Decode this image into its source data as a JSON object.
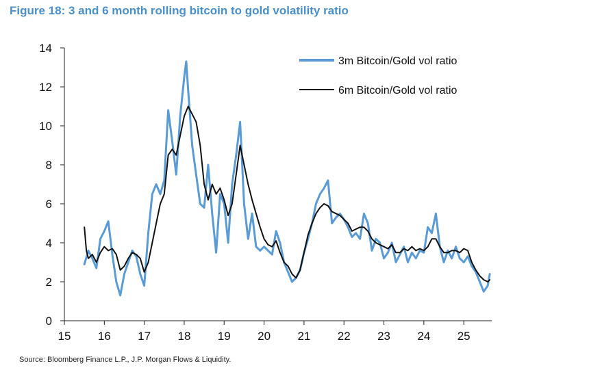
{
  "figure": {
    "title": "Figure 18: 3 and 6 month rolling bitcoin to gold volatility ratio",
    "source": "Source: Bloomberg Finance L.P., J.P. Morgan Flows & Liquidity."
  },
  "colors": {
    "series_3m": "#5b9bd5",
    "series_6m": "#111111",
    "axis": "#222222"
  },
  "chart_data": {
    "type": "line",
    "title": "Figure 18: 3 and 6 month rolling bitcoin to gold volatility ratio",
    "xlabel": "",
    "ylabel": "",
    "xlim": [
      15,
      25.7
    ],
    "ylim": [
      0,
      14
    ],
    "xticks": [
      15,
      16,
      17,
      18,
      19,
      20,
      21,
      22,
      23,
      24,
      25
    ],
    "xtick_labels": [
      "15",
      "16",
      "17",
      "18",
      "19",
      "20",
      "21",
      "22",
      "23",
      "24",
      "25"
    ],
    "yticks": [
      0,
      2,
      4,
      6,
      8,
      10,
      12,
      14
    ],
    "ytick_labels": [
      "0",
      "2",
      "4",
      "6",
      "8",
      "10",
      "12",
      "14"
    ],
    "grid": false,
    "legend_position": "top-right",
    "series": [
      {
        "name": "3m Bitcoin/Gold vol ratio",
        "x": [
          15.5,
          15.6,
          15.7,
          15.8,
          15.9,
          16.0,
          16.1,
          16.2,
          16.3,
          16.4,
          16.5,
          16.6,
          16.7,
          16.8,
          16.9,
          17.0,
          17.1,
          17.2,
          17.3,
          17.4,
          17.5,
          17.6,
          17.7,
          17.8,
          17.9,
          18.0,
          18.05,
          18.1,
          18.2,
          18.3,
          18.4,
          18.5,
          18.6,
          18.7,
          18.8,
          18.9,
          19.0,
          19.1,
          19.2,
          19.3,
          19.4,
          19.5,
          19.6,
          19.7,
          19.8,
          19.9,
          20.0,
          20.1,
          20.2,
          20.3,
          20.4,
          20.5,
          20.6,
          20.7,
          20.8,
          20.9,
          21.0,
          21.1,
          21.2,
          21.3,
          21.4,
          21.5,
          21.6,
          21.7,
          21.8,
          21.9,
          22.0,
          22.1,
          22.2,
          22.3,
          22.4,
          22.5,
          22.6,
          22.7,
          22.8,
          22.9,
          23.0,
          23.1,
          23.2,
          23.3,
          23.4,
          23.5,
          23.6,
          23.7,
          23.8,
          23.9,
          24.0,
          24.1,
          24.2,
          24.3,
          24.4,
          24.5,
          24.6,
          24.7,
          24.8,
          24.9,
          25.0,
          25.1,
          25.2,
          25.3,
          25.4,
          25.5,
          25.6,
          25.65
        ],
        "y": [
          2.9,
          3.6,
          3.2,
          2.7,
          4.2,
          4.6,
          5.1,
          3.4,
          2.0,
          1.3,
          2.4,
          3.0,
          3.6,
          3.3,
          2.4,
          1.8,
          4.5,
          6.5,
          7.0,
          6.5,
          7.2,
          10.8,
          9.2,
          7.5,
          10.5,
          12.5,
          13.3,
          11.8,
          9.0,
          7.5,
          6.0,
          5.8,
          8.0,
          5.5,
          3.5,
          6.5,
          6.0,
          4.0,
          7.0,
          8.5,
          10.2,
          6.0,
          4.2,
          5.5,
          3.8,
          3.6,
          3.8,
          3.6,
          3.4,
          4.6,
          4.0,
          3.0,
          2.5,
          2.0,
          2.2,
          2.6,
          3.5,
          4.2,
          5.0,
          6.0,
          6.5,
          6.8,
          7.2,
          5.0,
          5.3,
          5.5,
          5.2,
          4.8,
          4.3,
          4.5,
          4.2,
          5.5,
          5.0,
          3.6,
          4.2,
          4.0,
          3.2,
          3.5,
          4.0,
          3.0,
          3.4,
          3.8,
          3.0,
          3.5,
          3.2,
          3.6,
          3.5,
          4.8,
          4.5,
          5.5,
          3.8,
          3.0,
          3.6,
          3.2,
          3.8,
          3.2,
          3.0,
          3.3,
          2.8,
          2.5,
          2.0,
          1.5,
          1.8,
          2.4
        ]
      },
      {
        "name": "6m Bitcoin/Gold vol ratio",
        "x": [
          15.5,
          15.55,
          15.6,
          15.7,
          15.8,
          15.9,
          16.0,
          16.1,
          16.2,
          16.3,
          16.4,
          16.5,
          16.6,
          16.7,
          16.8,
          16.9,
          17.0,
          17.1,
          17.2,
          17.3,
          17.4,
          17.5,
          17.6,
          17.7,
          17.8,
          17.9,
          18.0,
          18.1,
          18.2,
          18.3,
          18.4,
          18.5,
          18.6,
          18.7,
          18.8,
          18.9,
          19.0,
          19.1,
          19.2,
          19.3,
          19.4,
          19.5,
          19.6,
          19.7,
          19.8,
          19.9,
          20.0,
          20.1,
          20.2,
          20.3,
          20.4,
          20.5,
          20.6,
          20.7,
          20.8,
          20.9,
          21.0,
          21.1,
          21.2,
          21.3,
          21.4,
          21.5,
          21.6,
          21.7,
          21.8,
          21.9,
          22.0,
          22.1,
          22.2,
          22.3,
          22.4,
          22.5,
          22.6,
          22.7,
          22.8,
          22.9,
          23.0,
          23.1,
          23.2,
          23.3,
          23.4,
          23.5,
          23.6,
          23.7,
          23.8,
          23.9,
          24.0,
          24.1,
          24.2,
          24.3,
          24.4,
          24.5,
          24.6,
          24.7,
          24.8,
          24.9,
          25.0,
          25.1,
          25.2,
          25.3,
          25.4,
          25.5,
          25.6,
          25.65
        ],
        "y": [
          4.8,
          3.6,
          3.2,
          3.4,
          3.0,
          3.5,
          3.8,
          3.6,
          3.7,
          3.4,
          2.6,
          2.8,
          3.2,
          3.5,
          3.4,
          3.2,
          2.5,
          3.0,
          4.0,
          5.0,
          6.0,
          6.5,
          8.5,
          8.8,
          8.5,
          9.5,
          10.5,
          11.0,
          10.6,
          10.2,
          9.0,
          7.0,
          6.2,
          7.0,
          6.5,
          6.8,
          6.2,
          5.4,
          6.0,
          7.5,
          9.0,
          8.0,
          7.0,
          6.2,
          5.5,
          4.8,
          4.2,
          3.9,
          3.8,
          4.1,
          3.5,
          3.0,
          2.8,
          2.4,
          2.2,
          2.6,
          3.5,
          4.4,
          5.0,
          5.5,
          5.8,
          6.0,
          5.9,
          5.6,
          5.5,
          5.4,
          5.2,
          5.0,
          4.6,
          4.7,
          4.8,
          4.8,
          4.6,
          4.2,
          4.0,
          3.9,
          3.8,
          3.7,
          3.9,
          3.5,
          3.5,
          3.7,
          3.6,
          3.8,
          3.6,
          3.7,
          3.6,
          3.8,
          4.2,
          4.2,
          3.8,
          3.5,
          3.5,
          3.6,
          3.6,
          3.5,
          3.7,
          3.6,
          3.0,
          2.6,
          2.3,
          2.1,
          2.0,
          2.1
        ]
      }
    ]
  }
}
